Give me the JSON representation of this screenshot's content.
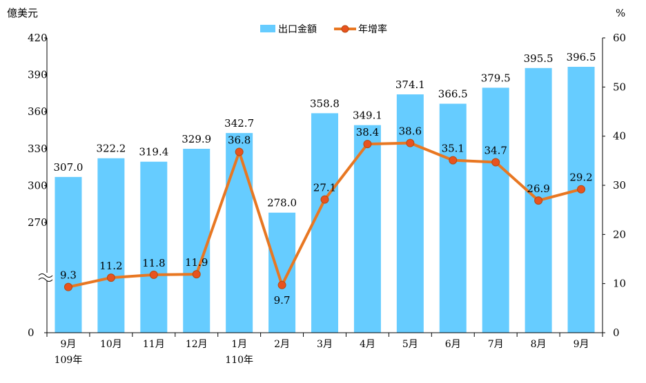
{
  "chart_data": {
    "type": "bar+line",
    "categories": [
      "9月",
      "10月",
      "11月",
      "12月",
      "1月",
      "2月",
      "3月",
      "4月",
      "5月",
      "6月",
      "7月",
      "8月",
      "9月"
    ],
    "category_sublabels": {
      "0": "109年",
      "4": "110年"
    },
    "series": [
      {
        "name": "出口金額",
        "type": "bar",
        "axis": "left",
        "color": "#66ccff",
        "values": [
          307.0,
          322.2,
          319.4,
          329.9,
          342.7,
          278.0,
          358.8,
          349.1,
          374.1,
          366.5,
          379.5,
          395.5,
          396.5
        ],
        "labels": [
          "307.0",
          "322.2",
          "319.4",
          "329.9",
          "342.7",
          "278.0",
          "358.8",
          "349.1",
          "374.1",
          "366.5",
          "379.5",
          "395.5",
          "396.5"
        ]
      },
      {
        "name": "年增率",
        "type": "line",
        "axis": "right",
        "color": "#e87722",
        "marker_color": "#e8531f",
        "values": [
          9.3,
          11.2,
          11.8,
          11.9,
          36.8,
          9.7,
          27.1,
          38.4,
          38.6,
          35.1,
          34.7,
          26.9,
          29.2
        ],
        "labels": [
          "9.3",
          "11.2",
          "11.8",
          "11.9",
          "36.8",
          "9.7",
          "27.1",
          "38.4",
          "38.6",
          "35.1",
          "34.7",
          "26.9",
          "29.2"
        ]
      }
    ],
    "left_axis": {
      "unit": "億美元",
      "ticks": [
        0,
        270,
        300,
        330,
        360,
        390,
        420
      ],
      "broken": true,
      "ylim": [
        0,
        420
      ]
    },
    "right_axis": {
      "unit": "%",
      "ticks": [
        0,
        10,
        20,
        30,
        40,
        50,
        60
      ],
      "ylim": [
        0,
        60
      ]
    },
    "legend_position": "top-center",
    "grid": false
  }
}
